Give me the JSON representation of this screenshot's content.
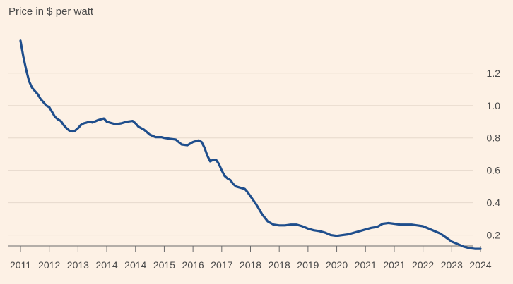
{
  "chart_data": {
    "type": "line",
    "title": "Price in $ per watt",
    "xlabel": "",
    "ylabel": "",
    "x_tick_labels": [
      "2011",
      "2012",
      "2013",
      "2014",
      "2014",
      "2015",
      "2016",
      "2017",
      "2018",
      "2018",
      "2019",
      "2020",
      "2021",
      "2021",
      "2022",
      "2023",
      "2024"
    ],
    "y_ticks": [
      0.2,
      0.4,
      0.6,
      0.8,
      1.0,
      1.2
    ],
    "y_tick_labels": [
      "0.2",
      "0.4",
      "0.6",
      "0.8",
      "1.0",
      "1.2"
    ],
    "ylim": [
      0.1,
      1.42
    ],
    "x_index_range": [
      0,
      16
    ],
    "grid": true,
    "colors": {
      "line": "#1f4e8c",
      "background": "#fdf1e5",
      "grid": "#e6d9cc"
    },
    "series": [
      {
        "x": [
          0,
          0.1,
          0.2,
          0.3,
          0.4,
          0.5,
          0.6,
          0.7,
          0.8,
          0.9,
          1.0,
          1.1,
          1.2,
          1.3,
          1.4,
          1.5,
          1.6,
          1.7,
          1.8,
          1.9,
          2.0,
          2.1,
          2.2,
          2.3,
          2.4,
          2.5,
          2.7,
          2.9,
          3.0,
          3.1,
          3.2,
          3.3,
          3.5,
          3.7,
          3.9,
          4.0,
          4.1,
          4.3,
          4.5,
          4.7,
          4.9,
          5.0,
          5.2,
          5.4,
          5.6,
          5.8,
          5.9,
          6.0,
          6.1,
          6.2,
          6.3,
          6.4,
          6.5,
          6.6,
          6.7,
          6.8,
          6.9,
          7.0,
          7.1,
          7.2,
          7.3,
          7.4,
          7.5,
          7.6,
          7.7,
          7.8,
          7.9,
          8.0,
          8.2,
          8.4,
          8.6,
          8.8,
          9.0,
          9.2,
          9.4,
          9.6,
          9.8,
          10.0,
          10.2,
          10.4,
          10.6,
          10.8,
          11.0,
          11.2,
          11.4,
          11.6,
          11.8,
          12.0,
          12.2,
          12.4,
          12.6,
          12.8,
          13.0,
          13.2,
          13.4,
          13.6,
          13.8,
          14.0,
          14.2,
          14.4,
          14.6,
          14.8,
          15.0,
          15.2,
          15.4,
          15.6,
          15.8,
          16.0
        ],
        "y": [
          1.4,
          1.3,
          1.22,
          1.15,
          1.11,
          1.09,
          1.07,
          1.04,
          1.02,
          1.0,
          0.99,
          0.96,
          0.93,
          0.915,
          0.905,
          0.88,
          0.86,
          0.845,
          0.84,
          0.845,
          0.86,
          0.88,
          0.89,
          0.895,
          0.9,
          0.895,
          0.91,
          0.92,
          0.9,
          0.895,
          0.89,
          0.885,
          0.89,
          0.9,
          0.905,
          0.89,
          0.87,
          0.85,
          0.82,
          0.805,
          0.805,
          0.8,
          0.795,
          0.79,
          0.76,
          0.755,
          0.765,
          0.775,
          0.78,
          0.785,
          0.775,
          0.74,
          0.69,
          0.655,
          0.665,
          0.665,
          0.64,
          0.6,
          0.565,
          0.55,
          0.54,
          0.515,
          0.5,
          0.495,
          0.49,
          0.485,
          0.465,
          0.44,
          0.39,
          0.33,
          0.285,
          0.265,
          0.26,
          0.26,
          0.265,
          0.265,
          0.255,
          0.24,
          0.23,
          0.225,
          0.215,
          0.2,
          0.195,
          0.2,
          0.205,
          0.215,
          0.225,
          0.235,
          0.245,
          0.25,
          0.27,
          0.275,
          0.27,
          0.265,
          0.265,
          0.265,
          0.26,
          0.255,
          0.24,
          0.225,
          0.21,
          0.185,
          0.16,
          0.145,
          0.13,
          0.12,
          0.115,
          0.115
        ]
      }
    ]
  }
}
